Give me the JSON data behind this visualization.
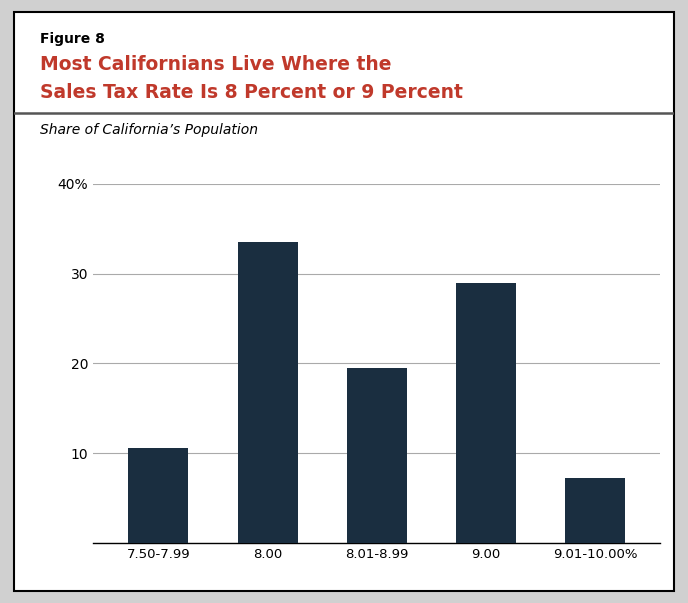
{
  "figure_label": "Figure 8",
  "title_line1": "Most Californians Live Where the",
  "title_line2": "Sales Tax Rate Is 8 Percent or 9 Percent",
  "subtitle": "Share of California’s Population",
  "categories": [
    "7.50-7.99",
    "8.00",
    "8.01-8.99",
    "9.00",
    "9.01-10.00%"
  ],
  "values": [
    10.6,
    33.5,
    19.5,
    29.0,
    7.2
  ],
  "bar_color": "#1a2e40",
  "ylim": [
    0,
    40
  ],
  "yticks": [
    0,
    10,
    20,
    30,
    40
  ],
  "ytick_labels": [
    "",
    "10",
    "20",
    "30",
    "40%"
  ],
  "background_color": "#ffffff",
  "title_color": "#c0392b",
  "figure_label_color": "#000000",
  "subtitle_color": "#000000",
  "border_color": "#000000",
  "outer_bg": "#d0d0d0"
}
